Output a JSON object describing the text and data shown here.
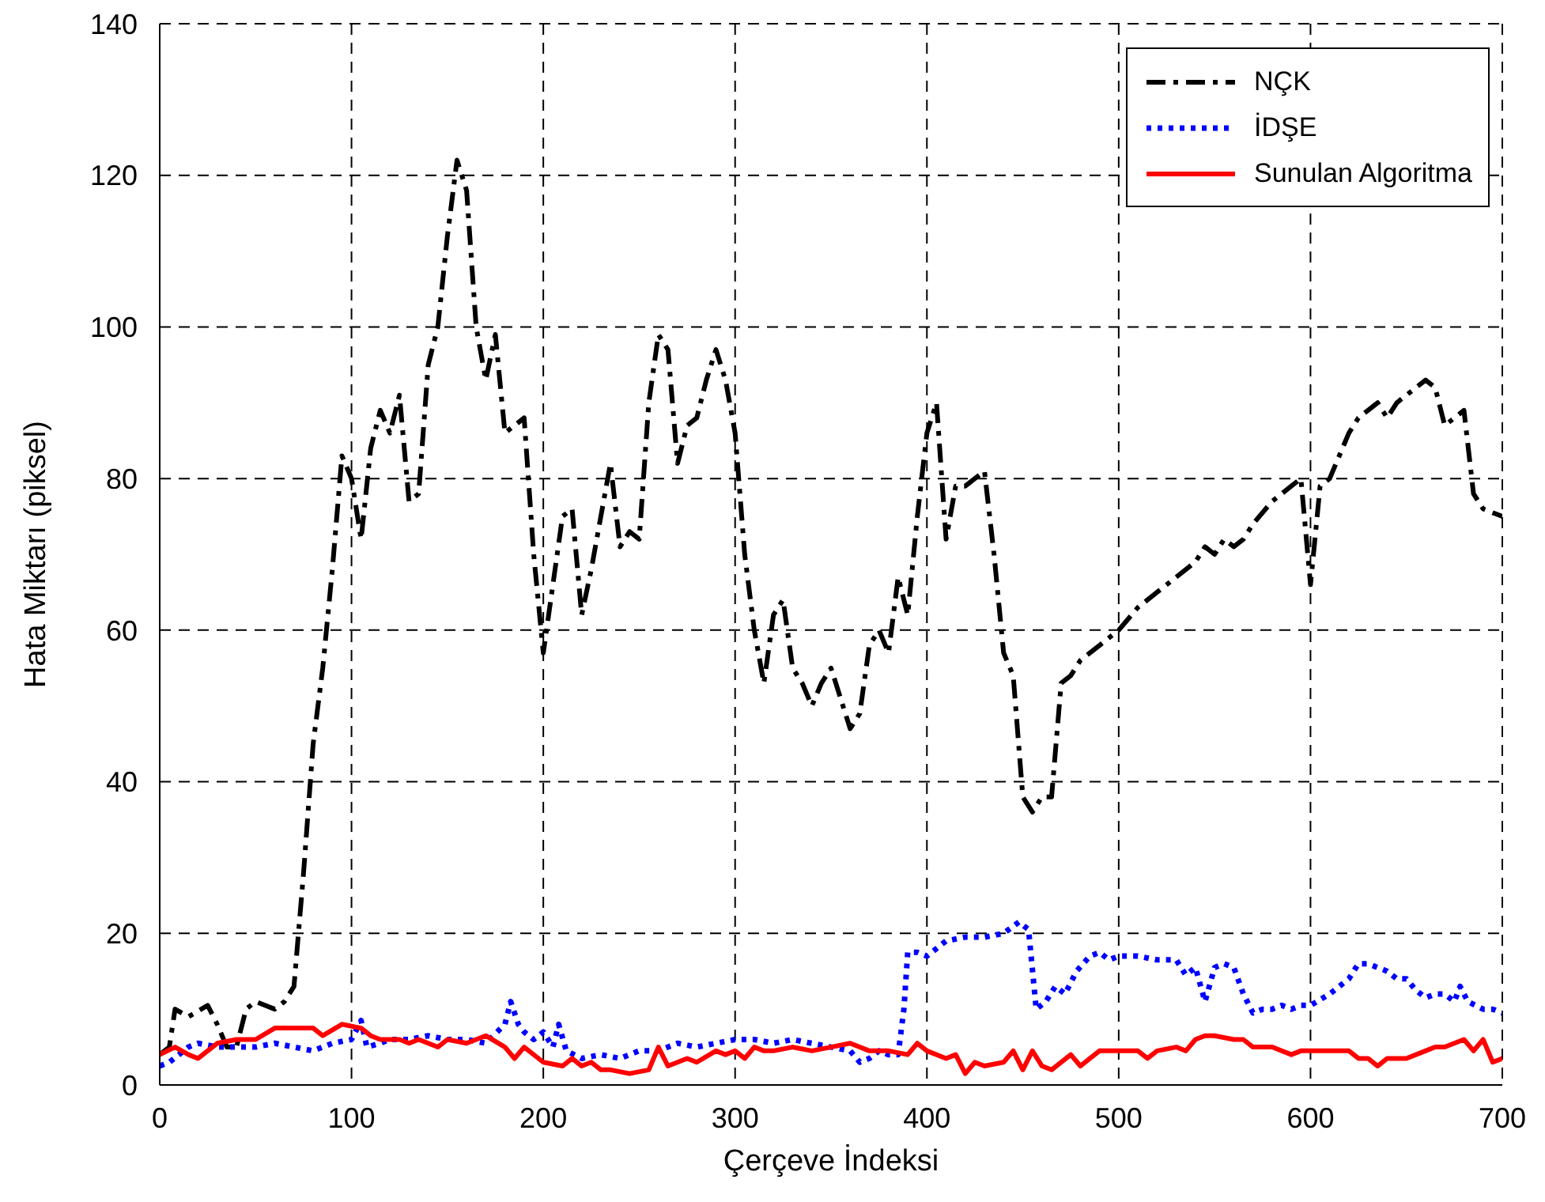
{
  "chart_data": {
    "type": "line",
    "xlabel": "Çerçeve İndeksi",
    "ylabel": "Hata Miktarı (piksel)",
    "xlim": [
      0,
      700
    ],
    "xticks": [
      0,
      100,
      200,
      300,
      400,
      500,
      600,
      700
    ],
    "ylim": [
      0,
      140
    ],
    "yticks": [
      0,
      20,
      40,
      60,
      80,
      100,
      120,
      140
    ],
    "grid": true,
    "legend": "top right",
    "marker": "none",
    "series": [
      {
        "name": "NÇK",
        "color": "#000000",
        "line_style": "dashdot",
        "x": [
          0,
          5,
          8,
          15,
          25,
          30,
          35,
          40,
          45,
          50,
          60,
          65,
          70,
          75,
          80,
          85,
          90,
          95,
          100,
          105,
          110,
          115,
          120,
          125,
          130,
          135,
          140,
          145,
          150,
          155,
          160,
          165,
          170,
          175,
          180,
          185,
          190,
          195,
          200,
          205,
          210,
          215,
          220,
          225,
          230,
          235,
          240,
          245,
          250,
          255,
          260,
          265,
          270,
          275,
          280,
          285,
          290,
          295,
          300,
          305,
          310,
          315,
          320,
          325,
          330,
          335,
          340,
          345,
          350,
          355,
          360,
          365,
          370,
          375,
          380,
          385,
          390,
          395,
          400,
          405,
          410,
          415,
          420,
          425,
          430,
          435,
          440,
          445,
          450,
          455,
          460,
          465,
          470,
          475,
          480,
          490,
          500,
          510,
          520,
          530,
          540,
          545,
          550,
          555,
          560,
          565,
          570,
          580,
          590,
          595,
          600,
          605,
          610,
          620,
          625,
          630,
          635,
          640,
          645,
          650,
          655,
          660,
          665,
          670,
          675,
          680,
          685,
          690,
          700
        ],
        "values": [
          4,
          5,
          10,
          9,
          10.5,
          8,
          5,
          5,
          10,
          11,
          10,
          11,
          13,
          28,
          45,
          55,
          68,
          83,
          80,
          72,
          84,
          89,
          86,
          91,
          77,
          78,
          95,
          100,
          112,
          122,
          118,
          100,
          93,
          99,
          86,
          87,
          88,
          70,
          57,
          66,
          75,
          76,
          62,
          68,
          75,
          82,
          71,
          73,
          72,
          90,
          99,
          97,
          82,
          87,
          88,
          93,
          97,
          93,
          86,
          70,
          60,
          53,
          62,
          64,
          55,
          53,
          50,
          53,
          55,
          51,
          47,
          49,
          58,
          60,
          57,
          67,
          62,
          75,
          86,
          90,
          72,
          79,
          79,
          80,
          81,
          70,
          57,
          54,
          38,
          36,
          38,
          38,
          53,
          54,
          56,
          58,
          60,
          63,
          65,
          67,
          69,
          71,
          70,
          72,
          71,
          72,
          74,
          77,
          79,
          80,
          66,
          79,
          80,
          86,
          88,
          89,
          90,
          88,
          90,
          91,
          92,
          93,
          92,
          87,
          88,
          89,
          78,
          76,
          75
        ]
      },
      {
        "name": "İDŞE",
        "color": "#0000ff",
        "line_style": "dotted",
        "x": [
          0,
          5,
          10,
          15,
          20,
          30,
          40,
          50,
          60,
          70,
          80,
          90,
          100,
          105,
          108,
          115,
          120,
          130,
          140,
          150,
          160,
          170,
          180,
          183,
          187,
          190,
          195,
          200,
          205,
          208,
          212,
          220,
          230,
          240,
          250,
          260,
          270,
          280,
          290,
          300,
          310,
          320,
          330,
          340,
          350,
          360,
          365,
          370,
          375,
          380,
          385,
          388,
          390,
          395,
          400,
          405,
          410,
          420,
          430,
          440,
          448,
          453,
          457,
          462,
          467,
          472,
          478,
          485,
          490,
          495,
          500,
          510,
          520,
          530,
          535,
          540,
          545,
          550,
          555,
          560,
          565,
          570,
          575,
          580,
          585,
          590,
          595,
          600,
          610,
          620,
          625,
          630,
          635,
          640,
          645,
          650,
          655,
          660,
          665,
          670,
          675,
          678,
          682,
          690,
          695,
          700
        ],
        "values": [
          2.5,
          3,
          4,
          5,
          5.5,
          5,
          5,
          5,
          5.5,
          5,
          4.5,
          5.5,
          6,
          8.5,
          5,
          5.5,
          6,
          6,
          6.5,
          6,
          6,
          5.5,
          8,
          11,
          8,
          7,
          6,
          7,
          5,
          8,
          4.5,
          3.5,
          4,
          3.5,
          4.5,
          4.5,
          5.5,
          5,
          5.5,
          6,
          6,
          5.5,
          6,
          5.5,
          5,
          4.5,
          3,
          3.5,
          4.5,
          4,
          4,
          10,
          17.5,
          17.5,
          17,
          18,
          19,
          19.5,
          19.5,
          20,
          21.5,
          20.5,
          10,
          11,
          13,
          12,
          15,
          17,
          17.5,
          16.5,
          17,
          17,
          16.5,
          16.5,
          14.5,
          15.5,
          11,
          15.5,
          16,
          15.5,
          12,
          9.5,
          10,
          10,
          10.5,
          10,
          10.5,
          10.5,
          12,
          14,
          16,
          16,
          15.5,
          15,
          14,
          14,
          12.5,
          11.5,
          12,
          12,
          11,
          13,
          11,
          10,
          10,
          9.5
        ]
      },
      {
        "name": "Sunulan Algoritma",
        "color": "#ff0000",
        "line_style": "solid",
        "x": [
          0,
          8,
          15,
          20,
          25,
          30,
          40,
          50,
          60,
          70,
          80,
          85,
          95,
          105,
          110,
          115,
          125,
          130,
          135,
          145,
          150,
          160,
          170,
          180,
          185,
          190,
          200,
          210,
          215,
          220,
          225,
          230,
          235,
          245,
          255,
          260,
          265,
          270,
          275,
          280,
          290,
          295,
          300,
          305,
          310,
          315,
          320,
          330,
          340,
          350,
          360,
          370,
          380,
          390,
          395,
          400,
          410,
          415,
          420,
          425,
          430,
          440,
          445,
          450,
          455,
          460,
          465,
          475,
          480,
          485,
          490,
          500,
          510,
          515,
          520,
          530,
          535,
          540,
          545,
          550,
          560,
          565,
          570,
          580,
          590,
          595,
          600,
          610,
          620,
          625,
          630,
          635,
          640,
          650,
          660,
          665,
          670,
          680,
          685,
          690,
          695,
          700
        ],
        "values": [
          4,
          5,
          4,
          3.5,
          4.5,
          5.5,
          6,
          6,
          7.5,
          7.5,
          7.5,
          6.5,
          8,
          7.5,
          6.5,
          6,
          6,
          5.5,
          6,
          5,
          6,
          5.5,
          6.5,
          5,
          3.5,
          5,
          3,
          2.5,
          3.5,
          2.5,
          3,
          2,
          2,
          1.5,
          2,
          5,
          2.5,
          3,
          3.5,
          3,
          4.5,
          4,
          4.5,
          3.5,
          5,
          4.5,
          4.5,
          5,
          4.5,
          5,
          5.5,
          4.5,
          4.5,
          4,
          5.5,
          4.5,
          3.5,
          4,
          1.5,
          3,
          2.5,
          3,
          4.5,
          2,
          4.5,
          2.5,
          2,
          4,
          2.5,
          3.5,
          4.5,
          4.5,
          4.5,
          3.5,
          4.5,
          5,
          4.5,
          6,
          6.5,
          6.5,
          6,
          6,
          5,
          5,
          4,
          4.5,
          4.5,
          4.5,
          4.5,
          3.5,
          3.5,
          2.5,
          3.5,
          3.5,
          4.5,
          5,
          5,
          6,
          4.5,
          6,
          3,
          3.5
        ]
      }
    ]
  }
}
